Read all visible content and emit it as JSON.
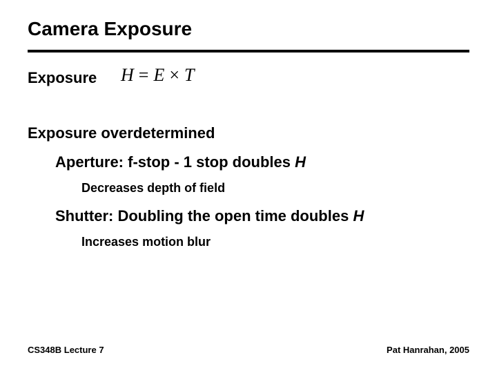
{
  "title": "Camera Exposure",
  "exposure_label": "Exposure",
  "formula": {
    "lhs": "H",
    "eq": "=",
    "a": "E",
    "times": "×",
    "b": "T"
  },
  "overdetermined": "Exposure overdetermined",
  "aperture": {
    "line_prefix": "Aperture: f-stop - 1 stop doubles ",
    "var": "H",
    "sub": "Decreases depth of field"
  },
  "shutter": {
    "line_prefix": "Shutter: Doubling the open time doubles ",
    "var": "H",
    "sub": "Increases motion blur"
  },
  "footer": {
    "left": "CS348B Lecture 7",
    "right": "Pat Hanrahan, 2005"
  },
  "style": {
    "slide_width": 720,
    "slide_height": 540,
    "background": "#ffffff",
    "text_color": "#000000",
    "title_fontsize": 28,
    "h2_fontsize": 22,
    "b2_fontsize": 18,
    "footer_fontsize": 13,
    "formula_fontsize": 26,
    "rule_thickness": 4,
    "rule_color": "#000000",
    "font_family_body": "Arial",
    "font_family_formula": "Times New Roman"
  }
}
